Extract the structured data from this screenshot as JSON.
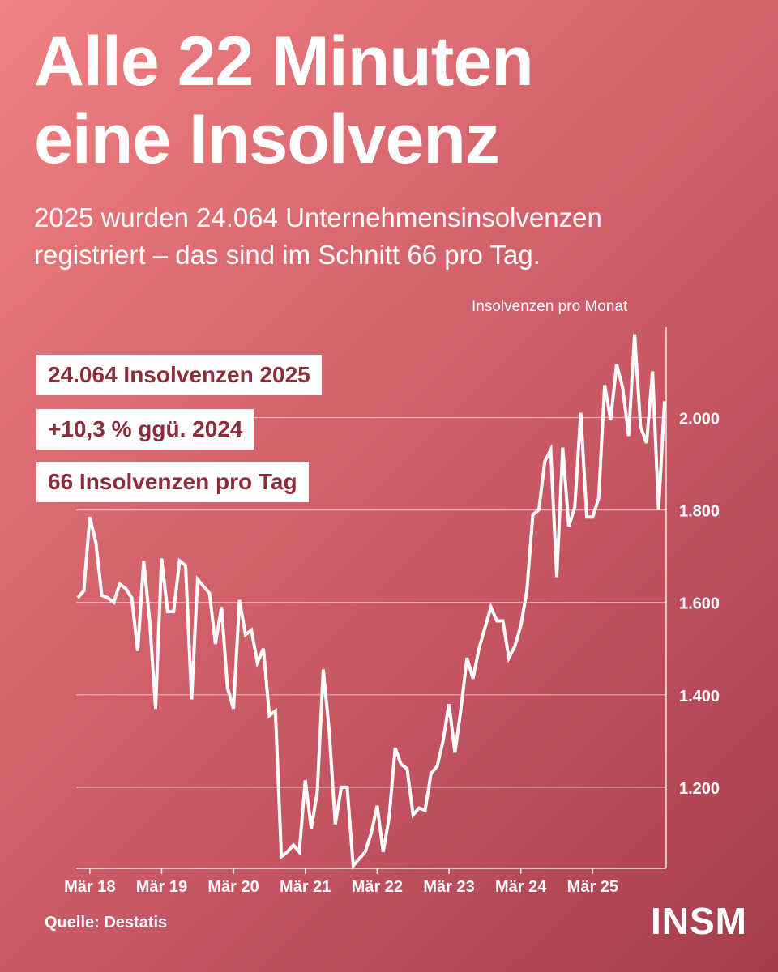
{
  "header": {
    "title_line1": "Alle 22 Minuten",
    "title_line2": "eine Insolvenz",
    "subtitle_line1": "2025 wurden 24.064 Unternehmensinsolvenzen",
    "subtitle_line2": "registriert – das sind im Schnitt 66 pro Tag."
  },
  "stats": [
    "24.064 Insolvenzen 2025",
    "+10,3 % ggü. 2024",
    "66 Insolvenzen pro Tag"
  ],
  "footer": {
    "source": "Quelle: Destatis",
    "logo": "INSM"
  },
  "colors": {
    "line": "#ffffff",
    "stat_text": "#8c2d3c"
  },
  "chart_data": {
    "type": "line",
    "ylabel": "Insolvenzen pro Monat",
    "yticks": [
      1200,
      1400,
      1600,
      1800,
      2000
    ],
    "ytick_labels": [
      "1.200",
      "1.400",
      "1.600",
      "1.800",
      "2.000"
    ],
    "ylim": [
      1020,
      2200
    ],
    "xtick_labels": [
      "Mär 18",
      "Mär 19",
      "Mär 20",
      "Mär 21",
      "Mär 22",
      "Mär 23",
      "Mär 24",
      "Mär 25"
    ],
    "x_start": "Jan 18",
    "x_end": "Nov 25",
    "grid": true,
    "series": [
      {
        "values": [
          1610,
          1625,
          1785,
          1730,
          1615,
          1610,
          1600,
          1640,
          1630,
          1610,
          1495,
          1690,
          1560,
          1370,
          1695,
          1580,
          1580,
          1690,
          1680,
          1390,
          1650,
          1635,
          1620,
          1510,
          1590,
          1415,
          1370,
          1605,
          1530,
          1540,
          1470,
          1500,
          1355,
          1365,
          1050,
          1060,
          1075,
          1060,
          1215,
          1110,
          1190,
          1455,
          1320,
          1120,
          1200,
          1200,
          1030,
          1045,
          1060,
          1100,
          1160,
          1060,
          1135,
          1285,
          1250,
          1240,
          1140,
          1155,
          1150,
          1230,
          1245,
          1300,
          1380,
          1275,
          1370,
          1480,
          1435,
          1500,
          1545,
          1590,
          1560,
          1560,
          1480,
          1505,
          1550,
          1625,
          1790,
          1800,
          1905,
          1930,
          1655,
          1935,
          1765,
          1805,
          2010,
          1785,
          1785,
          1825,
          2070,
          1995,
          2115,
          2065,
          1960,
          2180,
          1980,
          1945,
          2100,
          1800,
          2035
        ]
      }
    ]
  }
}
